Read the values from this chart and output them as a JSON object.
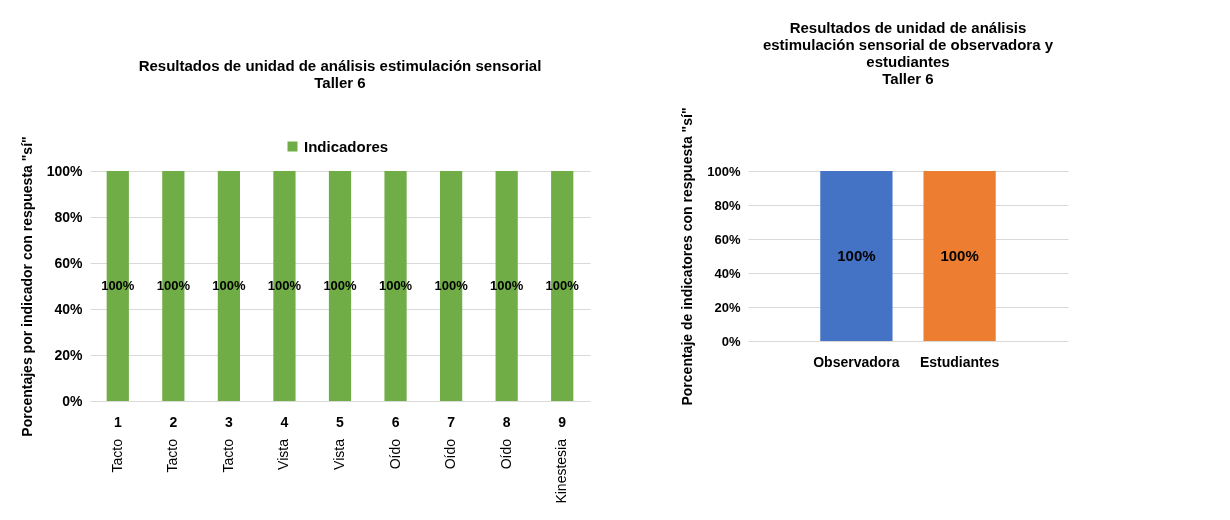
{
  "chart_data": [
    {
      "type": "bar",
      "title": "Resultados de unidad de análisis estimulación sensorial\nTaller 6",
      "ylabel": "Porcentajes por indicador con respuesta \"sí\"",
      "categories": [
        "1\nTacto",
        "2\nTacto",
        "3\nTacto",
        "4\nVista",
        "5\nVista",
        "6\nOído",
        "7\nOído",
        "8\nOído",
        "9\nKinestesia"
      ],
      "series": [
        {
          "name": "Indicadores",
          "color": "#70ad47",
          "values": [
            100,
            100,
            100,
            100,
            100,
            100,
            100,
            100,
            100
          ],
          "value_labels": [
            "100%",
            "100%",
            "100%",
            "100%",
            "100%",
            "100%",
            "100%",
            "100%",
            "100%"
          ]
        }
      ],
      "ylim": [
        0,
        100
      ],
      "yticks": [
        {
          "value": 0,
          "label": "0%"
        },
        {
          "value": 20,
          "label": "20%"
        },
        {
          "value": 40,
          "label": "40%"
        },
        {
          "value": 60,
          "label": "60%"
        },
        {
          "value": 80,
          "label": "80%"
        },
        {
          "value": 100,
          "label": "100%"
        }
      ],
      "grid": "y",
      "legend": "top"
    },
    {
      "type": "bar",
      "title": "Resultados de unidad de análisis\nestimulación sensorial de observadora y\nestudiantes\nTaller 6",
      "ylabel": "Porcentaje de indicatores con respuesta \"sí\"",
      "categories": [
        "Observadora",
        "Estudiantes"
      ],
      "values": [
        100,
        100
      ],
      "colors": [
        "#4472c4",
        "#ed7d31"
      ],
      "value_labels": [
        "100%",
        "100%"
      ],
      "ylim": [
        0,
        100
      ],
      "yticks": [
        {
          "value": 0,
          "label": "0%"
        },
        {
          "value": 20,
          "label": "20%"
        },
        {
          "value": 40,
          "label": "40%"
        },
        {
          "value": 60,
          "label": "60%"
        },
        {
          "value": 80,
          "label": "80%"
        },
        {
          "value": 100,
          "label": "100%"
        }
      ],
      "grid": "y",
      "legend": false
    }
  ]
}
